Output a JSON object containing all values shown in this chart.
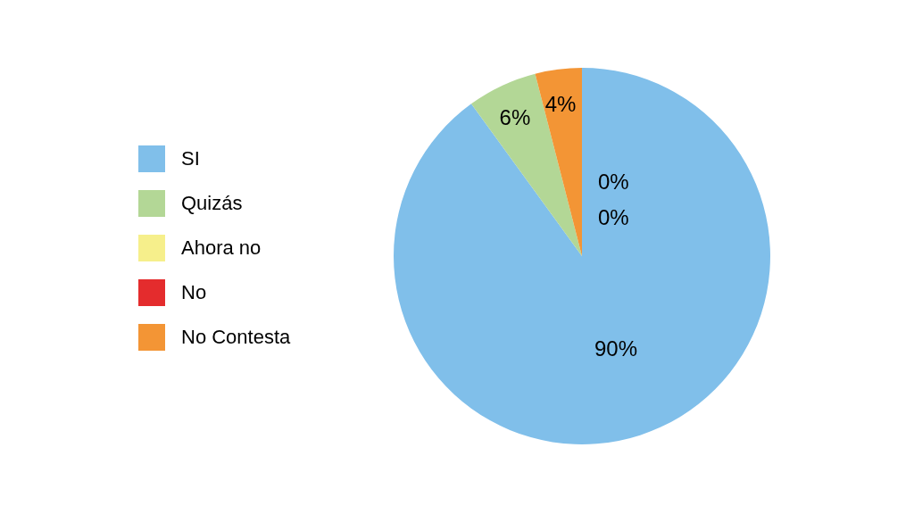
{
  "chart_data": {
    "type": "pie",
    "categories": [
      "SI",
      "Quizás",
      "Ahora no",
      "No",
      "No Contesta"
    ],
    "values": [
      90,
      6,
      0,
      0,
      4
    ],
    "colors": [
      "#80bfea",
      "#b3d796",
      "#f6ef8b",
      "#e42c2d",
      "#f39535"
    ],
    "value_labels": [
      "90%",
      "6%",
      "0%",
      "0%",
      "4%"
    ],
    "legend": "left"
  }
}
